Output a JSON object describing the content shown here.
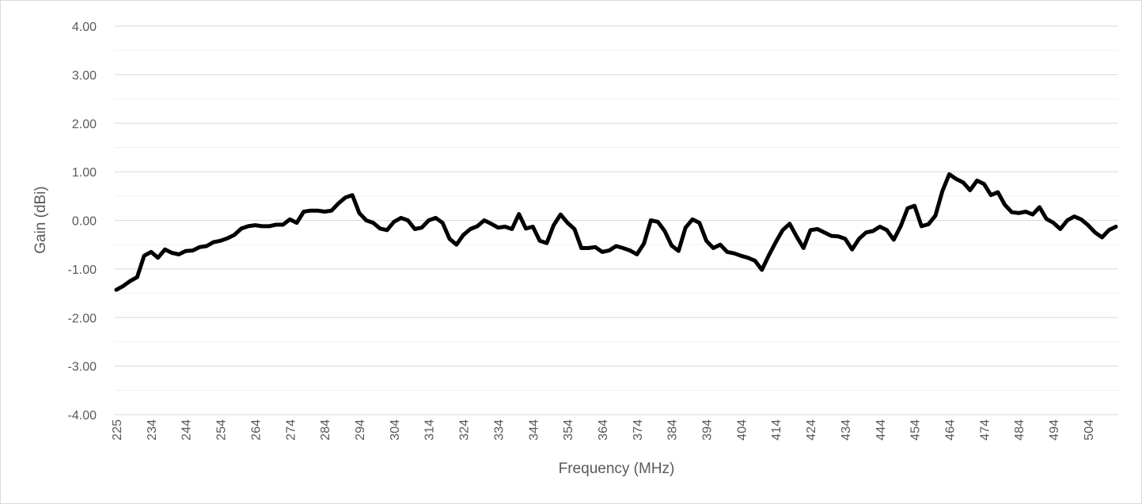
{
  "chart_data": {
    "type": "line",
    "x_label": "Frequency (MHz)",
    "y_label": "Gain (dBi)",
    "categories": [
      225,
      null,
      null,
      null,
      null,
      234,
      null,
      null,
      null,
      null,
      244,
      null,
      null,
      null,
      null,
      254,
      null,
      null,
      null,
      null,
      264,
      null,
      null,
      null,
      null,
      274,
      null,
      null,
      null,
      null,
      284,
      null,
      null,
      null,
      null,
      294,
      null,
      null,
      null,
      null,
      304,
      null,
      null,
      null,
      null,
      314,
      null,
      null,
      null,
      null,
      324,
      null,
      null,
      null,
      null,
      334,
      null,
      null,
      null,
      null,
      344,
      null,
      null,
      null,
      null,
      354,
      null,
      null,
      null,
      null,
      364,
      null,
      null,
      null,
      null,
      374,
      null,
      null,
      null,
      null,
      384,
      null,
      null,
      null,
      null,
      394,
      null,
      null,
      null,
      null,
      404,
      null,
      null,
      null,
      null,
      414,
      null,
      null,
      null,
      null,
      424,
      null,
      null,
      null,
      null,
      434,
      null,
      null,
      null,
      null,
      444,
      null,
      null,
      null,
      null,
      454,
      null,
      null,
      null,
      null,
      464,
      null,
      null,
      null,
      null,
      474,
      null,
      null,
      null,
      null,
      484,
      null,
      null,
      null,
      null,
      494,
      null,
      null,
      null,
      null,
      504,
      null,
      null,
      null,
      null
    ],
    "series": [
      {
        "color": "#000000",
        "values": [
          -1.43,
          -1.35,
          -1.25,
          -1.17,
          -0.73,
          -0.65,
          -0.77,
          -0.6,
          -0.67,
          -0.7,
          -0.63,
          -0.62,
          -0.55,
          -0.53,
          -0.45,
          -0.42,
          -0.37,
          -0.3,
          -0.17,
          -0.12,
          -0.1,
          -0.12,
          -0.12,
          -0.09,
          -0.09,
          0.02,
          -0.05,
          0.18,
          0.2,
          0.2,
          0.18,
          0.2,
          0.35,
          0.47,
          0.52,
          0.15,
          0.0,
          -0.05,
          -0.17,
          -0.2,
          -0.03,
          0.05,
          0.0,
          -0.18,
          -0.15,
          0.0,
          0.05,
          -0.05,
          -0.38,
          -0.5,
          -0.3,
          -0.18,
          -0.12,
          0.0,
          -0.07,
          -0.15,
          -0.13,
          -0.18,
          0.13,
          -0.17,
          -0.13,
          -0.42,
          -0.47,
          -0.1,
          0.12,
          -0.05,
          -0.18,
          -0.57,
          -0.57,
          -0.55,
          -0.65,
          -0.62,
          -0.53,
          -0.57,
          -0.62,
          -0.7,
          -0.48,
          0.0,
          -0.03,
          -0.22,
          -0.52,
          -0.63,
          -0.15,
          0.02,
          -0.05,
          -0.42,
          -0.57,
          -0.5,
          -0.65,
          -0.68,
          -0.73,
          -0.77,
          -0.83,
          -1.02,
          -0.72,
          -0.45,
          -0.2,
          -0.07,
          -0.33,
          -0.57,
          -0.2,
          -0.18,
          -0.25,
          -0.32,
          -0.33,
          -0.38,
          -0.6,
          -0.38,
          -0.25,
          -0.22,
          -0.13,
          -0.2,
          -0.4,
          -0.12,
          0.25,
          0.3,
          -0.12,
          -0.08,
          0.1,
          0.6,
          0.95,
          0.85,
          0.78,
          0.62,
          0.82,
          0.75,
          0.52,
          0.58,
          0.32,
          0.17,
          0.15,
          0.18,
          0.12,
          0.27,
          0.03,
          -0.05,
          -0.18,
          0.0,
          0.08,
          0.02,
          -0.1,
          -0.25,
          -0.35,
          -0.2,
          -0.13
        ]
      }
    ],
    "ylim": [
      -4,
      4
    ],
    "yticks": [
      {
        "value": -4,
        "label": "-4.00"
      },
      {
        "value": -3,
        "label": "-3.00"
      },
      {
        "value": -2,
        "label": "-2.00"
      },
      {
        "value": -1,
        "label": "-1.00"
      },
      {
        "value": 0,
        "label": "0.00"
      },
      {
        "value": 1,
        "label": "1.00"
      },
      {
        "value": 2,
        "label": "2.00"
      },
      {
        "value": 3,
        "label": "3.00"
      },
      {
        "value": 4,
        "label": "4.00"
      }
    ],
    "minor_yticks": [
      -3.5,
      -2.5,
      -1.5,
      -0.5,
      0.5,
      1.5,
      2.5,
      3.5
    ],
    "grid": true
  }
}
